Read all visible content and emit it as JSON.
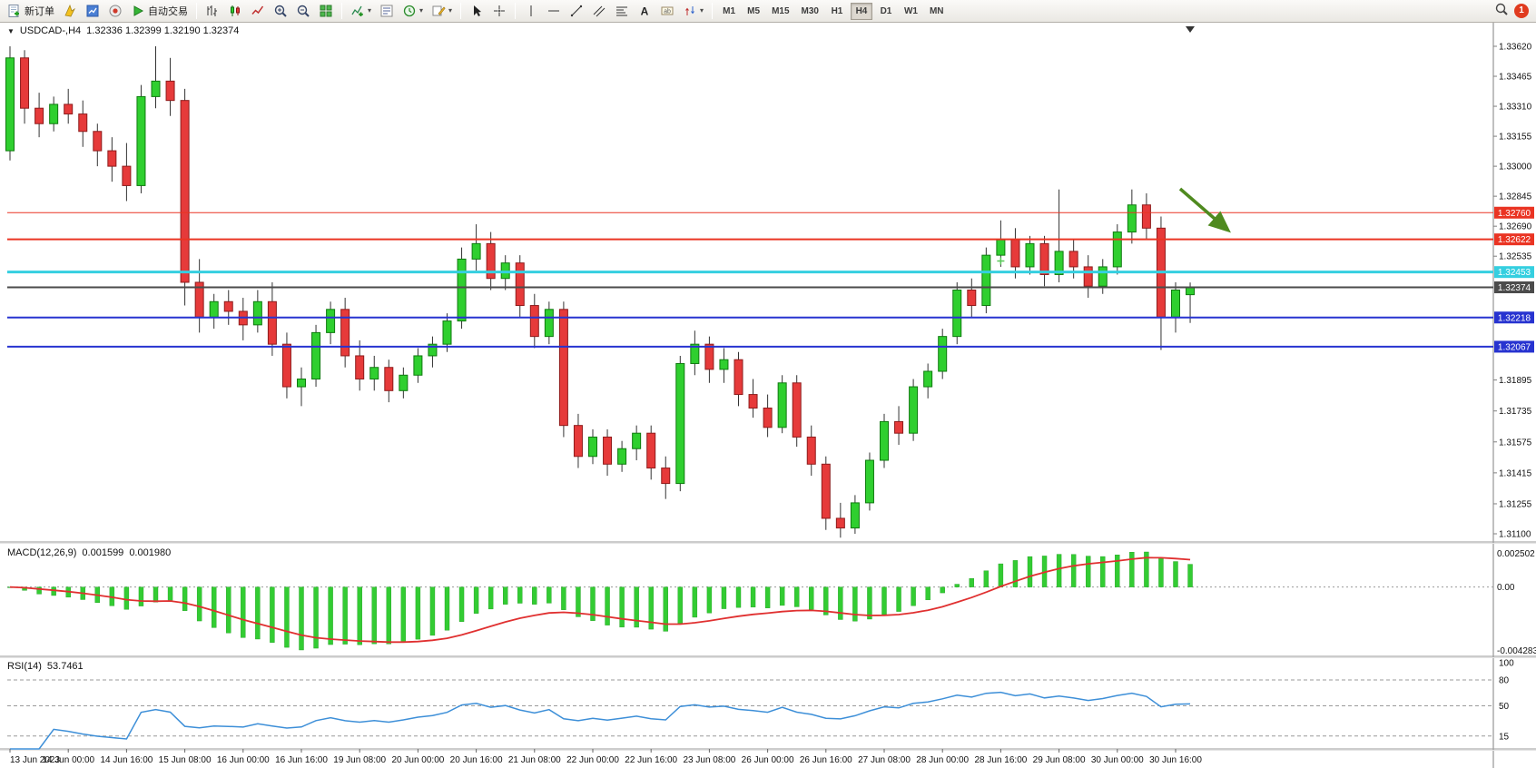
{
  "toolbar": {
    "new_order_label": "新订单",
    "algo_trading_label": "自动交易",
    "timeframes": [
      "M1",
      "M5",
      "M15",
      "M30",
      "H1",
      "H4",
      "D1",
      "W1",
      "MN"
    ],
    "active_timeframe": "H4",
    "notification_count": "1"
  },
  "chart_header": {
    "symbol_period": "USDCAD-,H4",
    "ohlc_text": "1.32336 1.32399 1.32190 1.32374"
  },
  "indicators_header": {
    "macd_label": "MACD(12,26,9)",
    "macd_value_main": "0.001599",
    "macd_value_signal": "0.001980",
    "rsi_label": "RSI(14)",
    "rsi_value": "53.7461"
  },
  "chart_data": {
    "type": "candlestick",
    "symbol": "USDCAD-",
    "period": "H4",
    "last_bar_ohlc": {
      "open": "1.32336",
      "high": "1.32399",
      "low": "1.32190",
      "close": "1.32374"
    },
    "ylim": [
      1.311,
      1.3362
    ],
    "price_axis_labels": [
      "1.33620",
      "1.33465",
      "1.33310",
      "1.33155",
      "1.33000",
      "1.32845",
      "1.32690",
      "1.32535",
      "1.31895",
      "1.31735",
      "1.31575",
      "1.31415",
      "1.31255",
      "1.31100"
    ],
    "x_labels": [
      "13 Jun 2023",
      "14 Jun 00:00",
      "14 Jun 16:00",
      "15 Jun 08:00",
      "16 Jun 00:00",
      "16 Jun 16:00",
      "19 Jun 08:00",
      "20 Jun 00:00",
      "20 Jun 16:00",
      "21 Jun 08:00",
      "22 Jun 00:00",
      "22 Jun 16:00",
      "23 Jun 08:00",
      "26 Jun 00:00",
      "26 Jun 16:00",
      "27 Jun 08:00",
      "28 Jun 00:00",
      "28 Jun 16:00",
      "29 Jun 08:00",
      "30 Jun 00:00",
      "30 Jun 16:00"
    ],
    "bars_per_label": 4,
    "up_color": "#2fcf2f",
    "down_color": "#e63a3a",
    "candles": [
      [
        1.3308,
        1.3362,
        1.3303,
        1.3356
      ],
      [
        1.3356,
        1.336,
        1.3322,
        1.333
      ],
      [
        1.333,
        1.3338,
        1.3315,
        1.3322
      ],
      [
        1.3322,
        1.3336,
        1.3318,
        1.3332
      ],
      [
        1.3332,
        1.334,
        1.3322,
        1.3327
      ],
      [
        1.3327,
        1.3334,
        1.331,
        1.3318
      ],
      [
        1.3318,
        1.3322,
        1.33,
        1.3308
      ],
      [
        1.3308,
        1.3315,
        1.3292,
        1.33
      ],
      [
        1.33,
        1.3312,
        1.3282,
        1.329
      ],
      [
        1.329,
        1.3342,
        1.3286,
        1.3336
      ],
      [
        1.3336,
        1.3362,
        1.333,
        1.3344
      ],
      [
        1.3344,
        1.3356,
        1.3326,
        1.3334
      ],
      [
        1.3334,
        1.334,
        1.3228,
        1.324
      ],
      [
        1.324,
        1.3252,
        1.3214,
        1.3222
      ],
      [
        1.3222,
        1.3234,
        1.3216,
        1.323
      ],
      [
        1.323,
        1.3236,
        1.3218,
        1.3225
      ],
      [
        1.3225,
        1.3232,
        1.321,
        1.3218
      ],
      [
        1.3218,
        1.3236,
        1.3214,
        1.323
      ],
      [
        1.323,
        1.324,
        1.3202,
        1.3208
      ],
      [
        1.3208,
        1.3214,
        1.318,
        1.3186
      ],
      [
        1.3186,
        1.3196,
        1.3176,
        1.319
      ],
      [
        1.319,
        1.3218,
        1.3186,
        1.3214
      ],
      [
        1.3214,
        1.323,
        1.3208,
        1.3226
      ],
      [
        1.3226,
        1.3232,
        1.3196,
        1.3202
      ],
      [
        1.3202,
        1.321,
        1.3184,
        1.319
      ],
      [
        1.319,
        1.3202,
        1.3184,
        1.3196
      ],
      [
        1.3196,
        1.32,
        1.3178,
        1.3184
      ],
      [
        1.3184,
        1.3196,
        1.318,
        1.3192
      ],
      [
        1.3192,
        1.3206,
        1.3188,
        1.3202
      ],
      [
        1.3202,
        1.3212,
        1.3196,
        1.3208
      ],
      [
        1.3208,
        1.3224,
        1.3204,
        1.322
      ],
      [
        1.322,
        1.3258,
        1.3216,
        1.3252
      ],
      [
        1.3252,
        1.327,
        1.3246,
        1.326
      ],
      [
        1.326,
        1.3266,
        1.3236,
        1.3242
      ],
      [
        1.3242,
        1.3254,
        1.3236,
        1.325
      ],
      [
        1.325,
        1.3254,
        1.3222,
        1.3228
      ],
      [
        1.3228,
        1.3234,
        1.3206,
        1.3212
      ],
      [
        1.3212,
        1.323,
        1.3208,
        1.3226
      ],
      [
        1.3226,
        1.323,
        1.316,
        1.3166
      ],
      [
        1.3166,
        1.3172,
        1.3144,
        1.315
      ],
      [
        1.315,
        1.3164,
        1.3146,
        1.316
      ],
      [
        1.316,
        1.3164,
        1.314,
        1.3146
      ],
      [
        1.3146,
        1.3158,
        1.3142,
        1.3154
      ],
      [
        1.3154,
        1.3166,
        1.3148,
        1.3162
      ],
      [
        1.3162,
        1.3166,
        1.3138,
        1.3144
      ],
      [
        1.3144,
        1.315,
        1.3128,
        1.3136
      ],
      [
        1.3136,
        1.3202,
        1.3132,
        1.3198
      ],
      [
        1.3198,
        1.3215,
        1.3192,
        1.3208
      ],
      [
        1.3208,
        1.3212,
        1.3188,
        1.3195
      ],
      [
        1.3195,
        1.3206,
        1.3188,
        1.32
      ],
      [
        1.32,
        1.3204,
        1.3176,
        1.3182
      ],
      [
        1.3182,
        1.319,
        1.317,
        1.3175
      ],
      [
        1.3175,
        1.3182,
        1.316,
        1.3165
      ],
      [
        1.3165,
        1.3192,
        1.3162,
        1.3188
      ],
      [
        1.3188,
        1.3192,
        1.3155,
        1.316
      ],
      [
        1.316,
        1.3166,
        1.314,
        1.3146
      ],
      [
        1.3146,
        1.315,
        1.3112,
        1.3118
      ],
      [
        1.3118,
        1.3126,
        1.3108,
        1.3113
      ],
      [
        1.3113,
        1.313,
        1.311,
        1.3126
      ],
      [
        1.3126,
        1.3152,
        1.3122,
        1.3148
      ],
      [
        1.3148,
        1.3172,
        1.3144,
        1.3168
      ],
      [
        1.3168,
        1.3176,
        1.3156,
        1.3162
      ],
      [
        1.3162,
        1.319,
        1.3158,
        1.3186
      ],
      [
        1.3186,
        1.3198,
        1.318,
        1.3194
      ],
      [
        1.3194,
        1.3216,
        1.319,
        1.3212
      ],
      [
        1.3212,
        1.324,
        1.3208,
        1.3236
      ],
      [
        1.3236,
        1.3242,
        1.3222,
        1.3228
      ],
      [
        1.3228,
        1.3258,
        1.3224,
        1.3254
      ],
      [
        1.3254,
        1.3272,
        1.3248,
        1.3262
      ],
      [
        1.3262,
        1.3268,
        1.3242,
        1.3248
      ],
      [
        1.3248,
        1.3264,
        1.3244,
        1.326
      ],
      [
        1.326,
        1.3264,
        1.3238,
        1.3244
      ],
      [
        1.3244,
        1.3288,
        1.324,
        1.3256
      ],
      [
        1.3256,
        1.3262,
        1.3242,
        1.3248
      ],
      [
        1.3248,
        1.3254,
        1.3232,
        1.3238
      ],
      [
        1.3238,
        1.3252,
        1.3234,
        1.3248
      ],
      [
        1.3248,
        1.327,
        1.3244,
        1.3266
      ],
      [
        1.3266,
        1.3288,
        1.326,
        1.328
      ],
      [
        1.328,
        1.3286,
        1.3262,
        1.3268
      ],
      [
        1.3268,
        1.3274,
        1.3205,
        1.3222
      ],
      [
        1.3222,
        1.324,
        1.3214,
        1.3236
      ],
      [
        1.32336,
        1.32399,
        1.3219,
        1.32374
      ]
    ],
    "horizontal_lines": [
      {
        "price": 1.3276,
        "label": "1.32760",
        "color": "#ea3423",
        "width": 1
      },
      {
        "price": 1.32622,
        "label": "1.32622",
        "color": "#ea3423",
        "width": 2
      },
      {
        "price": 1.32453,
        "label": "1.32453",
        "color": "#35cfe0",
        "width": 3
      },
      {
        "price": 1.32374,
        "label": "1.32374",
        "color": "#4b4b4b",
        "width": 2
      },
      {
        "price": 1.32218,
        "label": "1.32218",
        "color": "#2733d0",
        "width": 2
      },
      {
        "price": 1.32067,
        "label": "1.32067",
        "color": "#2733d0",
        "width": 2
      }
    ],
    "arrow_annotation": {
      "color": "#4f8a1f"
    },
    "plus_marker": {
      "bar": 68,
      "price": 1.3251,
      "color": "#58c858"
    },
    "indicators": [
      {
        "name": "MACD",
        "params": [
          12,
          26,
          9
        ],
        "histogram_color": "#33cc33",
        "signal_color": "#e03030",
        "axis_labels": [
          "0.002502",
          "0.00",
          "-0.004283"
        ],
        "current_values": [
          0.001599,
          0.00198
        ]
      },
      {
        "name": "RSI",
        "params": [
          14
        ],
        "line_color": "#3d8fd8",
        "levels": [
          "100",
          "80",
          "50",
          "15"
        ],
        "current_value": 53.7461
      }
    ]
  }
}
